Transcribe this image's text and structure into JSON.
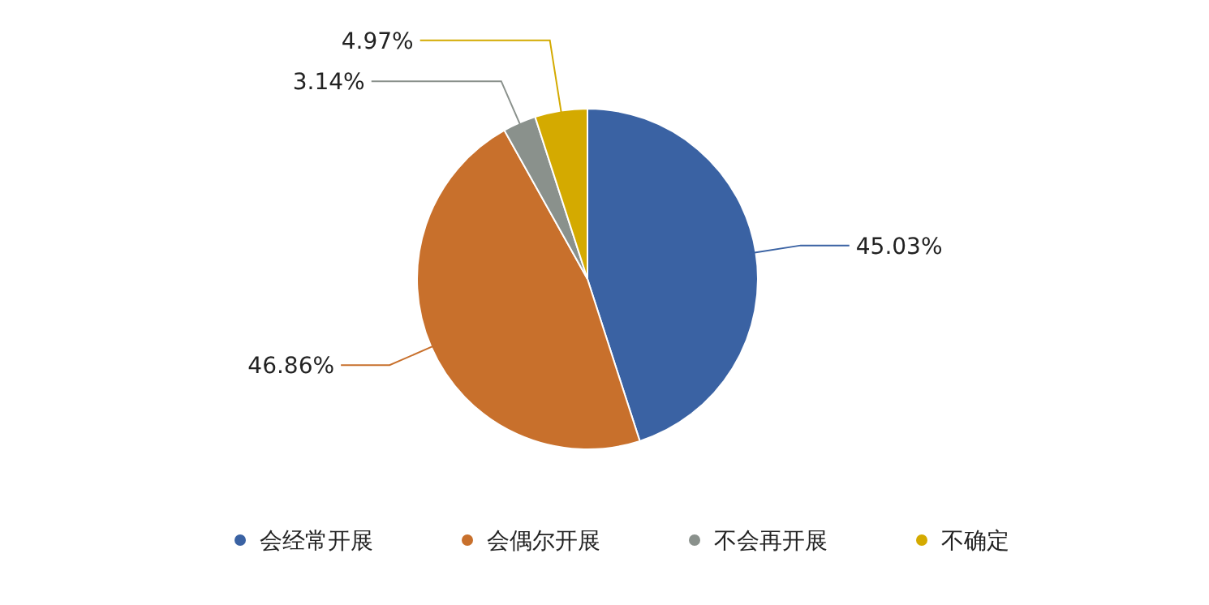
{
  "chart_data": {
    "type": "pie",
    "categories": [
      "会经常开展",
      "会偶尔开展",
      "不会再开展",
      "不确定"
    ],
    "values": [
      45.03,
      46.86,
      3.14,
      4.97
    ],
    "value_labels": [
      "45.03%",
      "46.86%",
      "3.14%",
      "4.97%"
    ],
    "colors": [
      "#3a62a3",
      "#c8702c",
      "#8a918c",
      "#d4aa00"
    ],
    "legend": "bottom"
  }
}
